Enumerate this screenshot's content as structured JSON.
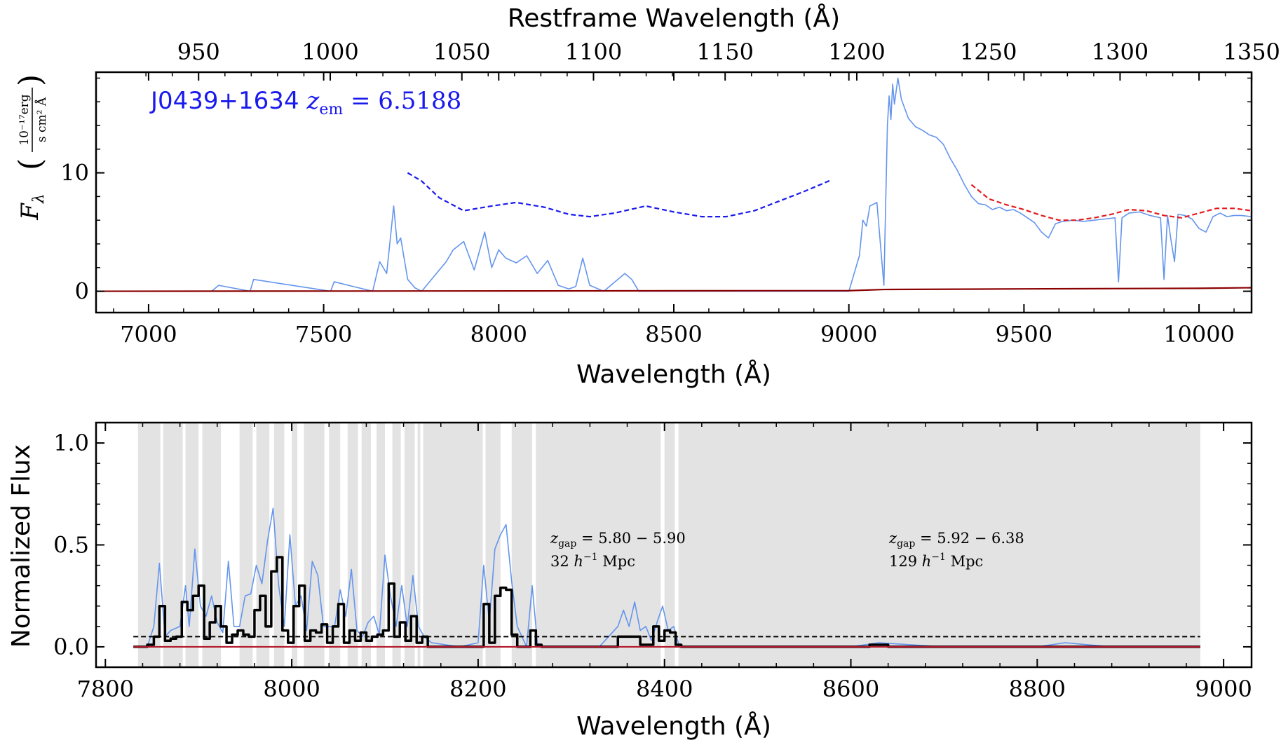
{
  "chart_data": [
    {
      "type": "line",
      "panel": "top",
      "title": "",
      "xlabel": "Wavelength (Å)",
      "ylabel_symbol": "Fλ",
      "ylabel_units_num": "10⁻¹⁷erg",
      "ylabel_units_den": "s cm² Å",
      "top_xlabel": "Restframe Wavelength (Å)",
      "annotation": "J0439+1634 zem = 6.5188",
      "xlim": [
        6850,
        10150
      ],
      "ylim": [
        -1.8,
        18.5
      ],
      "xticks": [
        7000,
        7500,
        8000,
        8500,
        9000,
        9500,
        10000
      ],
      "xtick_labels": [
        "7000",
        "7500",
        "8000",
        "8500",
        "9000",
        "9500",
        "10000"
      ],
      "yticks": [
        0,
        10
      ],
      "ytick_labels": [
        "0",
        "10"
      ],
      "top_xticks": [
        950,
        1000,
        1050,
        1100,
        1150,
        1200,
        1250,
        1300,
        1350
      ],
      "top_xtick_labels": [
        "950",
        "1000",
        "1050",
        "1100",
        "1150",
        "1200",
        "1250",
        "1300",
        "1350"
      ],
      "redshift": 6.5188,
      "series": [
        {
          "role": "flux",
          "color": "#6495ED",
          "x": [
            6850,
            7180,
            7200,
            7290,
            7300,
            7520,
            7530,
            7640,
            7660,
            7680,
            7700,
            7710,
            7720,
            7740,
            7760,
            7780,
            7850,
            7870,
            7900,
            7930,
            7960,
            7980,
            8000,
            8020,
            8050,
            8080,
            8110,
            8140,
            8170,
            8200,
            8220,
            8240,
            8260,
            8300,
            8360,
            8380,
            8400,
            8450,
            8600,
            8800,
            9000,
            9030,
            9040,
            9050,
            9060,
            9080,
            9100,
            9110,
            9115,
            9120,
            9125,
            9130,
            9140,
            9150,
            9170,
            9190,
            9210,
            9230,
            9250,
            9270,
            9290,
            9310,
            9330,
            9350,
            9370,
            9390,
            9410,
            9430,
            9450,
            9470,
            9490,
            9510,
            9530,
            9550,
            9570,
            9590,
            9610,
            9640,
            9670,
            9700,
            9730,
            9760,
            9770,
            9780,
            9800,
            9830,
            9860,
            9890,
            9900,
            9910,
            9920,
            9930,
            9940,
            9960,
            9980,
            10000,
            10020,
            10040,
            10060,
            10080,
            10100,
            10120,
            10150
          ],
          "y": [
            0,
            0,
            0.5,
            0,
            1.0,
            0,
            0.8,
            0,
            2.5,
            1.5,
            7.2,
            4.0,
            4.5,
            1.0,
            0.3,
            0,
            2.5,
            3.5,
            4.2,
            1.8,
            5.0,
            2.0,
            3.5,
            2.8,
            2.4,
            3.0,
            1.5,
            2.6,
            0.5,
            0.2,
            0.4,
            2.8,
            0.5,
            0,
            1.5,
            1.0,
            0,
            0,
            0,
            0,
            0,
            3.0,
            6.0,
            5.5,
            7.2,
            7.5,
            0.5,
            14.0,
            16.5,
            14.5,
            17.5,
            15.8,
            18.0,
            16.2,
            14.6,
            13.9,
            13.6,
            13.2,
            13.0,
            12.4,
            11.2,
            10.2,
            9.0,
            8.0,
            7.4,
            7.3,
            6.9,
            7.1,
            6.8,
            6.9,
            6.6,
            6.2,
            5.8,
            5.0,
            4.5,
            5.7,
            5.9,
            6.0,
            5.9,
            6.0,
            6.1,
            6.2,
            0.8,
            6.2,
            6.6,
            6.7,
            6.4,
            6.2,
            1.0,
            6.4,
            4.3,
            2.5,
            6.5,
            6.4,
            6.1,
            5.3,
            5.0,
            6.3,
            6.6,
            6.3,
            6.4,
            6.4,
            6.3
          ]
        },
        {
          "role": "continuum",
          "color": "#e41a1c",
          "x": [
            9350,
            9400,
            9450,
            9500,
            9550,
            9600,
            9650,
            9700,
            9750,
            9800,
            9850,
            9900,
            9950,
            10000,
            10050,
            10100,
            10150
          ],
          "y": [
            9.0,
            7.8,
            7.3,
            6.9,
            6.4,
            6.0,
            6.0,
            6.2,
            6.5,
            6.9,
            6.8,
            6.4,
            6.2,
            6.6,
            7.0,
            7.0,
            6.8
          ]
        },
        {
          "role": "continuum-blue",
          "color": "#1a1aee",
          "x": [
            7740,
            7780,
            7830,
            7900,
            7980,
            8050,
            8130,
            8200,
            8260,
            8330,
            8420,
            8500,
            8580,
            8650,
            8730,
            8800,
            8870,
            8950
          ],
          "y": [
            10.0,
            9.3,
            7.9,
            6.8,
            7.2,
            7.5,
            7.1,
            6.5,
            6.3,
            6.6,
            7.2,
            6.7,
            6.3,
            6.3,
            6.8,
            7.6,
            8.4,
            9.4
          ]
        },
        {
          "role": "error",
          "color": "#8b0000",
          "x": [
            6850,
            9000,
            9100,
            9500,
            10000,
            10150
          ],
          "y": [
            0.0,
            0.05,
            0.15,
            0.2,
            0.25,
            0.3
          ]
        }
      ]
    },
    {
      "type": "line",
      "panel": "bottom",
      "title": "",
      "xlabel": "Wavelength (Å)",
      "ylabel": "Normalized Flux",
      "xlim": [
        7790,
        9030
      ],
      "ylim": [
        -0.1,
        1.1
      ],
      "xticks": [
        7800,
        8000,
        8200,
        8400,
        8600,
        8800,
        9000
      ],
      "xtick_labels": [
        "7800",
        "8000",
        "8200",
        "8400",
        "8600",
        "8800",
        "9000"
      ],
      "yticks": [
        0.0,
        0.5,
        1.0
      ],
      "ytick_labels": [
        "0.0",
        "0.5",
        "1.0"
      ],
      "threshold": 0.05,
      "gap_regions": [
        [
          7835,
          7859
        ],
        [
          7862,
          7883
        ],
        [
          7886,
          7900
        ],
        [
          7904,
          7924
        ],
        [
          7944,
          7958
        ],
        [
          7962,
          7976
        ],
        [
          7981,
          7992
        ],
        [
          8000,
          8006
        ],
        [
          8013,
          8035
        ],
        [
          8040,
          8052
        ],
        [
          8060,
          8071
        ],
        [
          8075,
          8085
        ],
        [
          8091,
          8100
        ],
        [
          8108,
          8117
        ],
        [
          8121,
          8132
        ],
        [
          8135,
          8138
        ],
        [
          8141,
          8205
        ],
        [
          8208,
          8224
        ],
        [
          8236,
          8258
        ],
        [
          8262,
          8396
        ],
        [
          8400,
          8411
        ],
        [
          8415,
          8975
        ]
      ],
      "annotations": [
        {
          "line1": "zgap = 5.80 − 5.90",
          "line2": "32 h⁻¹ Mpc"
        },
        {
          "line1": "zgap = 5.92 − 6.38",
          "line2": "129 h⁻¹ Mpc"
        }
      ],
      "series": [
        {
          "role": "flux",
          "color": "#6495ED",
          "x": [
            7830,
            7845,
            7852,
            7858,
            7864,
            7870,
            7880,
            7886,
            7890,
            7896,
            7902,
            7908,
            7914,
            7920,
            7926,
            7932,
            7938,
            7944,
            7950,
            7956,
            7962,
            7968,
            7974,
            7980,
            7986,
            7992,
            7998,
            8004,
            8010,
            8016,
            8022,
            8028,
            8034,
            8040,
            8046,
            8052,
            8058,
            8064,
            8070,
            8076,
            8082,
            8088,
            8094,
            8100,
            8106,
            8112,
            8118,
            8124,
            8130,
            8136,
            8142,
            8150,
            8180,
            8200,
            8206,
            8212,
            8218,
            8224,
            8230,
            8236,
            8242,
            8252,
            8258,
            8264,
            8300,
            8330,
            8350,
            8356,
            8362,
            8368,
            8374,
            8380,
            8386,
            8392,
            8398,
            8404,
            8410,
            8416,
            8430,
            8500,
            8600,
            8630,
            8700,
            8800,
            8830,
            8880,
            8920,
            8960,
            8975
          ],
          "y": [
            0.0,
            0.0,
            0.1,
            0.41,
            0.05,
            0.08,
            0.1,
            0.3,
            0.1,
            0.48,
            0.2,
            0.15,
            0.25,
            0.12,
            0.07,
            0.42,
            0.1,
            0.1,
            0.25,
            0.26,
            0.4,
            0.31,
            0.52,
            0.68,
            0.3,
            0.1,
            0.55,
            0.2,
            0.25,
            0.08,
            0.42,
            0.35,
            0.1,
            0.1,
            0.1,
            0.28,
            0.15,
            0.38,
            0.08,
            0.05,
            0.12,
            0.15,
            0.06,
            0.45,
            0.25,
            0.1,
            0.3,
            0.1,
            0.35,
            0.1,
            0.05,
            0.02,
            0.0,
            0.02,
            0.4,
            0.12,
            0.48,
            0.55,
            0.6,
            0.32,
            0.1,
            0.0,
            0.3,
            0.0,
            0.0,
            0.0,
            0.1,
            0.18,
            0.1,
            0.22,
            0.08,
            0.1,
            0.03,
            0.12,
            0.2,
            0.08,
            0.1,
            0.0,
            0.0,
            0.0,
            0.0,
            0.02,
            0.0,
            0.0,
            0.02,
            0.0,
            0.0,
            0.0,
            0.0
          ]
        },
        {
          "role": "binned",
          "color": "#000000",
          "x": [
            7830,
            7845,
            7852,
            7858,
            7864,
            7870,
            7876,
            7882,
            7888,
            7894,
            7900,
            7906,
            7912,
            7918,
            7924,
            7930,
            7936,
            7942,
            7948,
            7954,
            7960,
            7966,
            7972,
            7978,
            7984,
            7990,
            7996,
            8002,
            8008,
            8014,
            8020,
            8026,
            8032,
            8038,
            8044,
            8050,
            8056,
            8062,
            8068,
            8074,
            8080,
            8086,
            8092,
            8098,
            8104,
            8110,
            8116,
            8122,
            8128,
            8134,
            8140,
            8146,
            8200,
            8206,
            8212,
            8218,
            8224,
            8230,
            8236,
            8242,
            8256,
            8262,
            8268,
            8350,
            8362,
            8374,
            8388,
            8394,
            8400,
            8406,
            8412,
            8418,
            8620,
            8630,
            8640,
            8975
          ],
          "y": [
            0.0,
            0.01,
            0.05,
            0.2,
            0.03,
            0.04,
            0.05,
            0.22,
            0.18,
            0.25,
            0.3,
            0.04,
            0.12,
            0.2,
            0.1,
            0.02,
            0.06,
            0.08,
            0.06,
            0.05,
            0.18,
            0.25,
            0.1,
            0.37,
            0.44,
            0.08,
            0.02,
            0.2,
            0.3,
            0.03,
            0.08,
            0.07,
            0.11,
            0.02,
            0.1,
            0.21,
            0.02,
            0.08,
            0.03,
            0.07,
            0.03,
            0.05,
            0.06,
            0.08,
            0.31,
            0.05,
            0.12,
            0.03,
            0.15,
            0.02,
            0.05,
            0.0,
            0.0,
            0.21,
            0.02,
            0.25,
            0.29,
            0.28,
            0.06,
            0.0,
            0.08,
            0.01,
            0.0,
            0.05,
            0.05,
            0.01,
            0.1,
            0.03,
            0.08,
            0.07,
            0.01,
            0.0,
            0.01,
            0.01,
            0.0,
            0.0
          ]
        },
        {
          "role": "error",
          "color": "#b2182b",
          "x": [
            7830,
            8975
          ],
          "y": [
            0.0,
            0.0
          ]
        }
      ]
    }
  ]
}
